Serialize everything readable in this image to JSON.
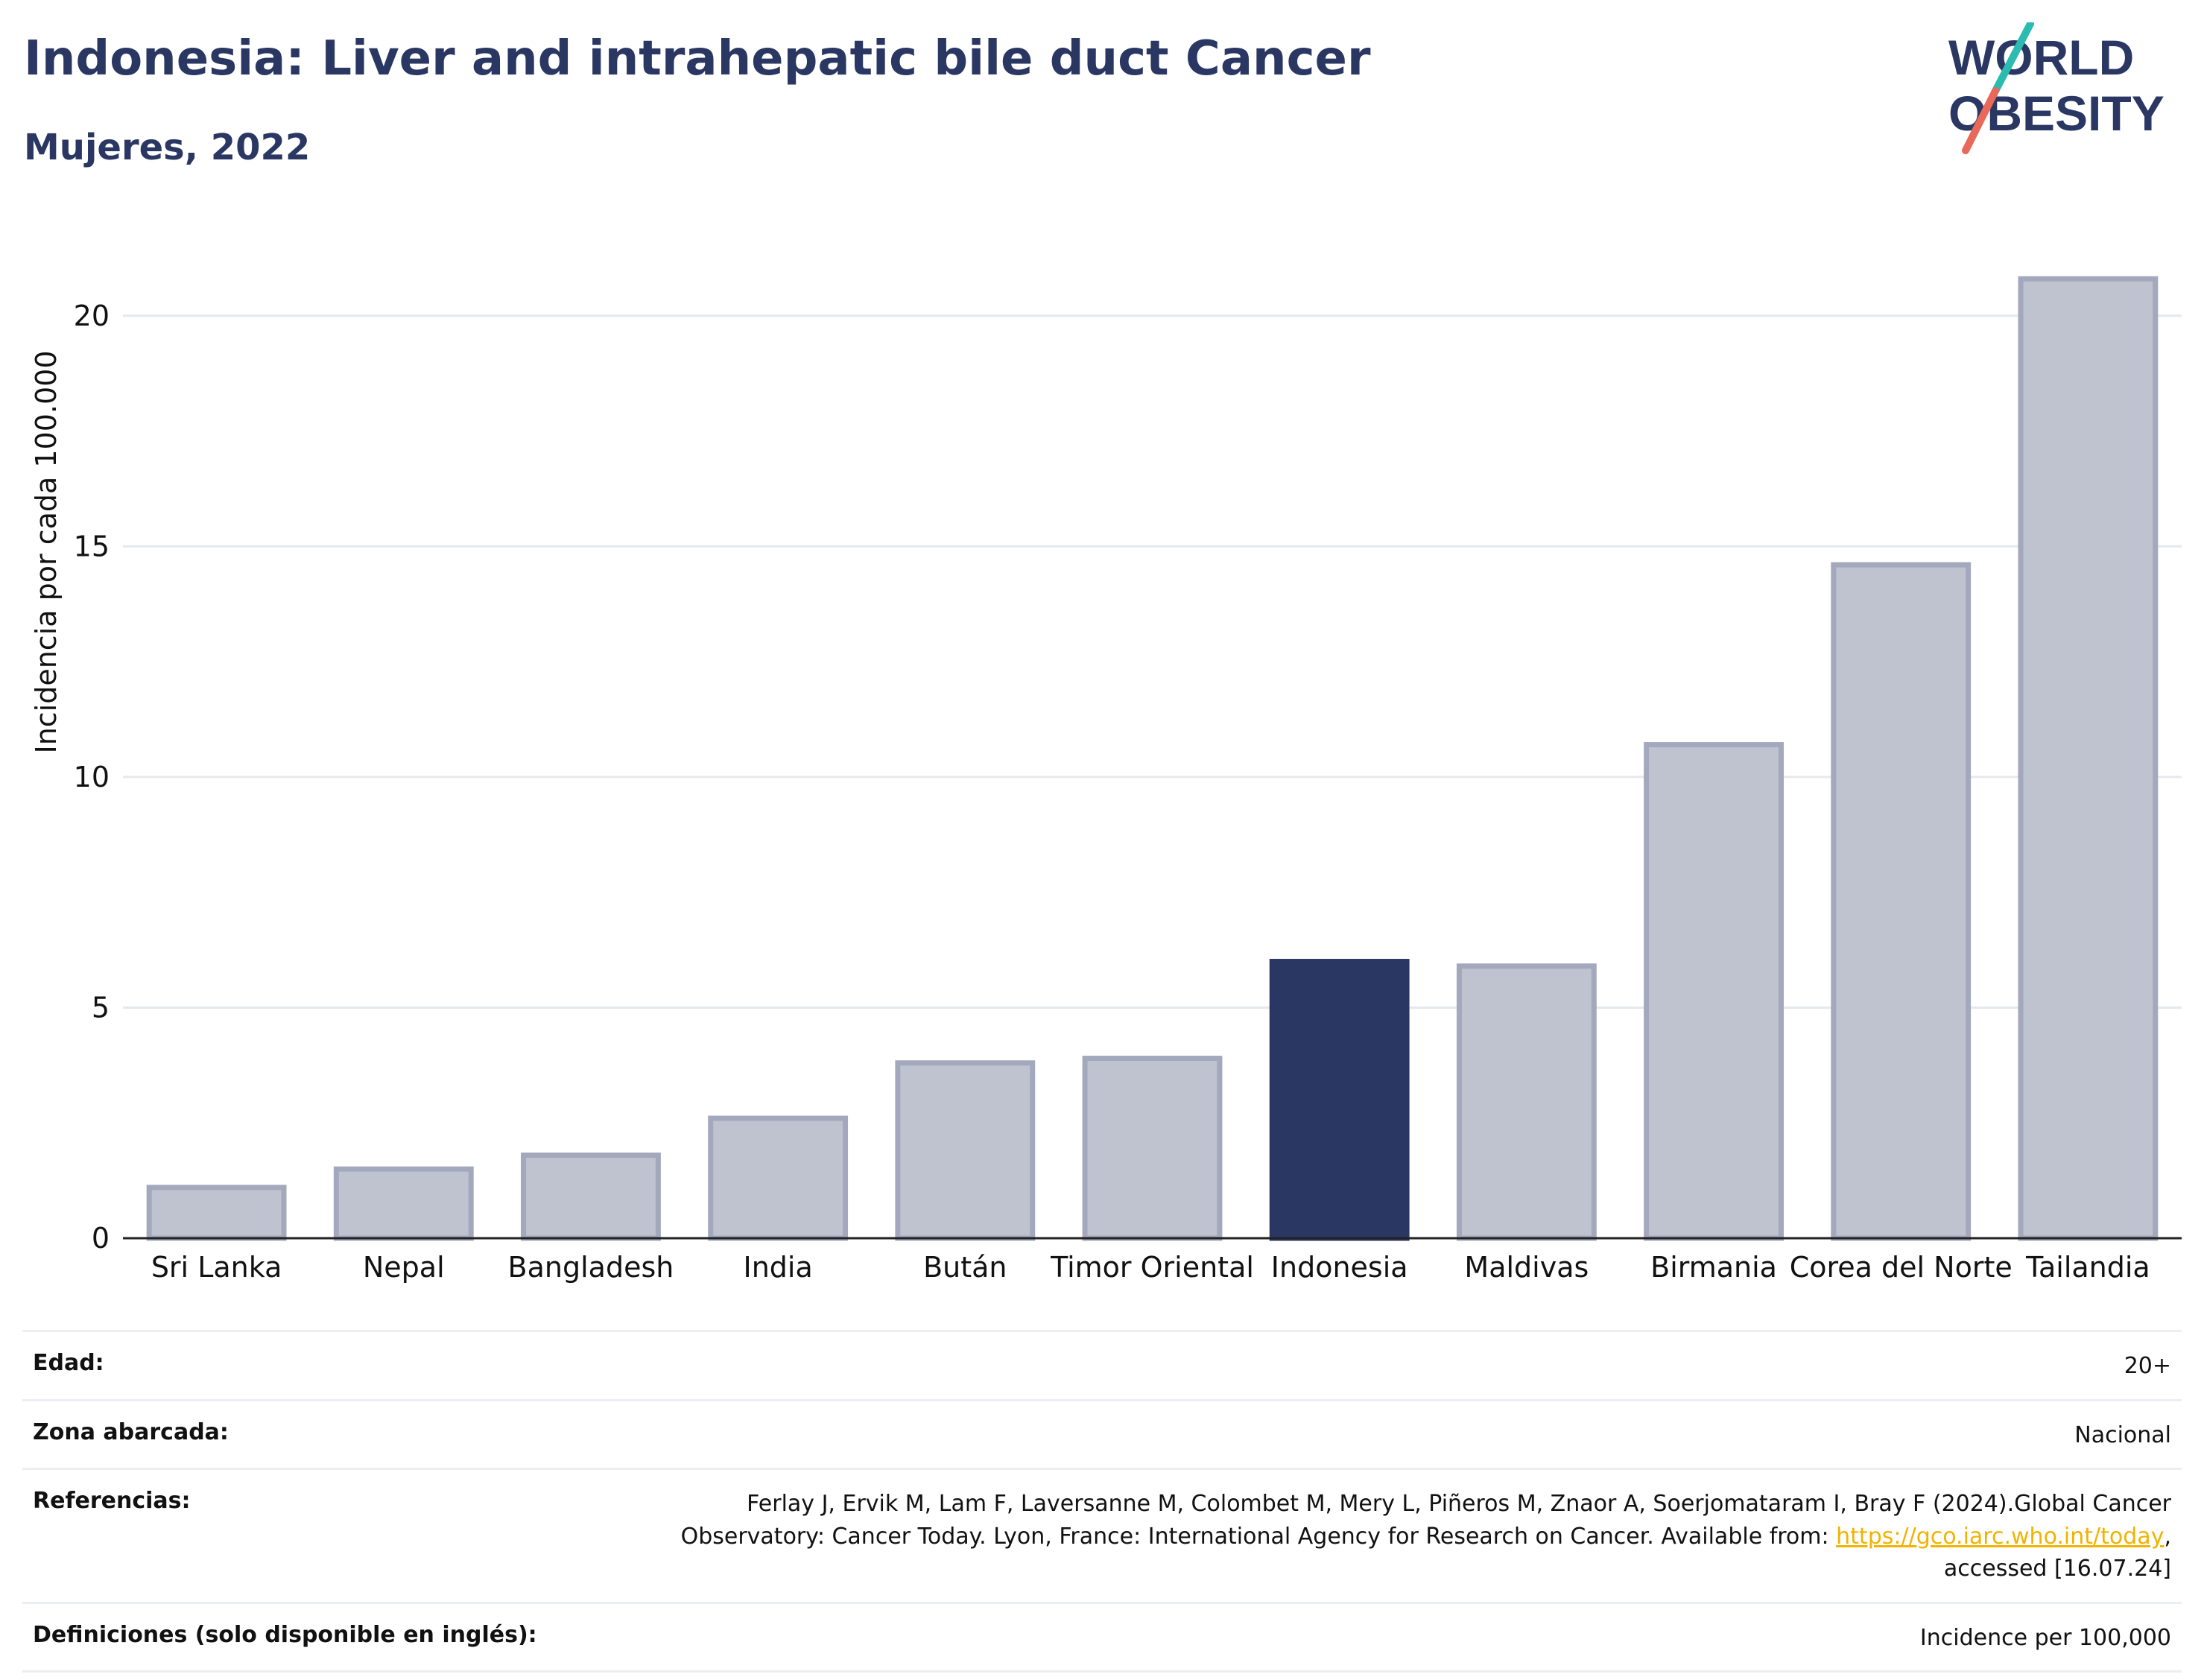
{
  "header": {
    "title": "Indonesia: Liver and intrahepatic bile duct Cancer",
    "subtitle": "Mujeres, 2022"
  },
  "logo": {
    "line1": "WORLD",
    "line2": "OBESITY"
  },
  "colors": {
    "highlight": "#2b3763",
    "bar": "#bfc2cf",
    "bar_border": "#a3a8bc",
    "grid": "#e6e8ef",
    "link": "#f1b300"
  },
  "chart_data": {
    "type": "bar",
    "categories": [
      "Sri Lanka",
      "Nepal",
      "Bangladesh",
      "India",
      "Bután",
      "Timor Oriental",
      "Indonesia",
      "Maldivas",
      "Birmania",
      "Corea del Norte",
      "Tailandia"
    ],
    "values": [
      1.1,
      1.5,
      1.8,
      2.6,
      3.8,
      3.9,
      6.0,
      5.9,
      10.7,
      14.6,
      20.8
    ],
    "highlight": "Indonesia",
    "ylabel": "Incidencia por cada 100.000",
    "xlabel": "",
    "ylim": [
      0,
      22
    ],
    "yticks": [
      0,
      5,
      10,
      15,
      20
    ],
    "grid": true
  },
  "meta": {
    "age_label": "Edad:",
    "age_value": "20+",
    "zone_label": "Zona abarcada:",
    "zone_value": "Nacional",
    "refs_label": "Referencias:",
    "refs_text_1": "Ferlay J, Ervik M, Lam F, Laversanne M, Colombet M, Mery L, Piñeros M, Znaor A, Soerjomataram I, Bray F (2024).Global Cancer",
    "refs_text_2": "Observatory: Cancer Today. Lyon, France: International Agency for Research on Cancer. Available from: ",
    "refs_link": "https://gco.iarc.who.int/today",
    "refs_text_3": ",",
    "refs_text_4": "accessed [16.07.24]",
    "defs_label": "Definiciones (solo disponible en inglés):",
    "defs_value": "Incidence per 100,000"
  }
}
